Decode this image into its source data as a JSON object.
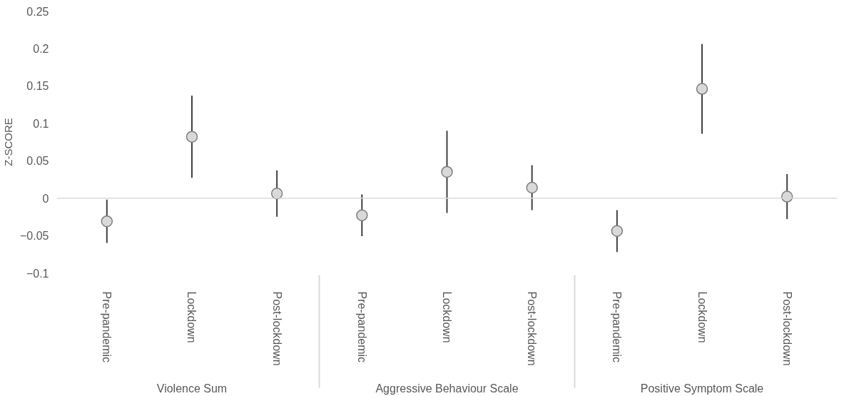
{
  "chart_data": {
    "type": "scatter",
    "ylabel": "Z-SCORE",
    "categories": [
      "Pre-pandemic",
      "Lockdown",
      "Post-lockdown",
      "Pre-pandemic",
      "Lockdown",
      "Post-lockdown",
      "Pre-pandemic",
      "Lockdown",
      "Post-lockdown"
    ],
    "values": [
      -0.031,
      0.082,
      0.006,
      -0.023,
      0.035,
      0.014,
      -0.044,
      0.146,
      0.002
    ],
    "errors": [
      0.029,
      0.055,
      0.031,
      0.028,
      0.055,
      0.03,
      0.028,
      0.06,
      0.03
    ],
    "color": "#d9d9d9",
    "annotations": [
      "Violence Sum",
      "Aggressive Behaviour Scale",
      "Positive Symptom Scale"
    ],
    "ylim": [
      -0.1,
      0.25
    ],
    "yticks": [
      -0.1,
      -0.05,
      0,
      0.05,
      0.1,
      0.15,
      0.2,
      0.25
    ],
    "ref_lines": [
      {
        "axis": "y",
        "value": 0,
        "color": "#d9d9d9"
      }
    ],
    "grid": false,
    "marker": "circle"
  }
}
